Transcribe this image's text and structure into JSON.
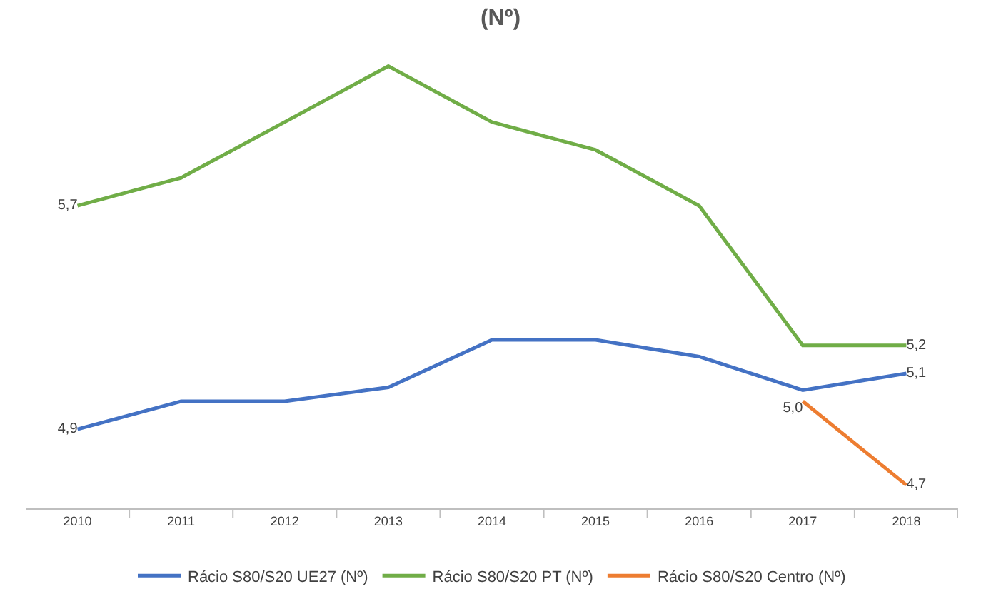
{
  "chart_data": {
    "type": "line",
    "title": "(Nº)",
    "categories": [
      "2010",
      "2011",
      "2012",
      "2013",
      "2014",
      "2015",
      "2016",
      "2017",
      "2018"
    ],
    "series": [
      {
        "name": "Rácio S80/S20 UE27 (Nº)",
        "color": "#4472c4",
        "values": [
          4.9,
          5.0,
          5.0,
          5.05,
          5.22,
          5.22,
          5.16,
          5.04,
          5.1
        ],
        "value_labels": [
          "4,9",
          null,
          null,
          null,
          null,
          null,
          null,
          null,
          "5,1"
        ]
      },
      {
        "name": "Rácio S80/S20 PT (Nº)",
        "color": "#70ad47",
        "values": [
          5.7,
          5.8,
          6.0,
          6.2,
          6.0,
          5.9,
          5.7,
          5.2,
          5.2
        ],
        "value_labels": [
          "5,7",
          null,
          null,
          null,
          null,
          null,
          null,
          null,
          "5,2"
        ]
      },
      {
        "name": "Rácio S80/S20 Centro (Nº)",
        "color": "#ed7d31",
        "values": [
          null,
          null,
          null,
          null,
          null,
          null,
          null,
          5.0,
          4.7
        ],
        "value_labels": [
          null,
          null,
          null,
          null,
          null,
          null,
          null,
          "5,0",
          "4,7"
        ]
      }
    ],
    "tick_labels": "x",
    "legend": "bottom",
    "marker": "none",
    "line_style": "solid"
  }
}
